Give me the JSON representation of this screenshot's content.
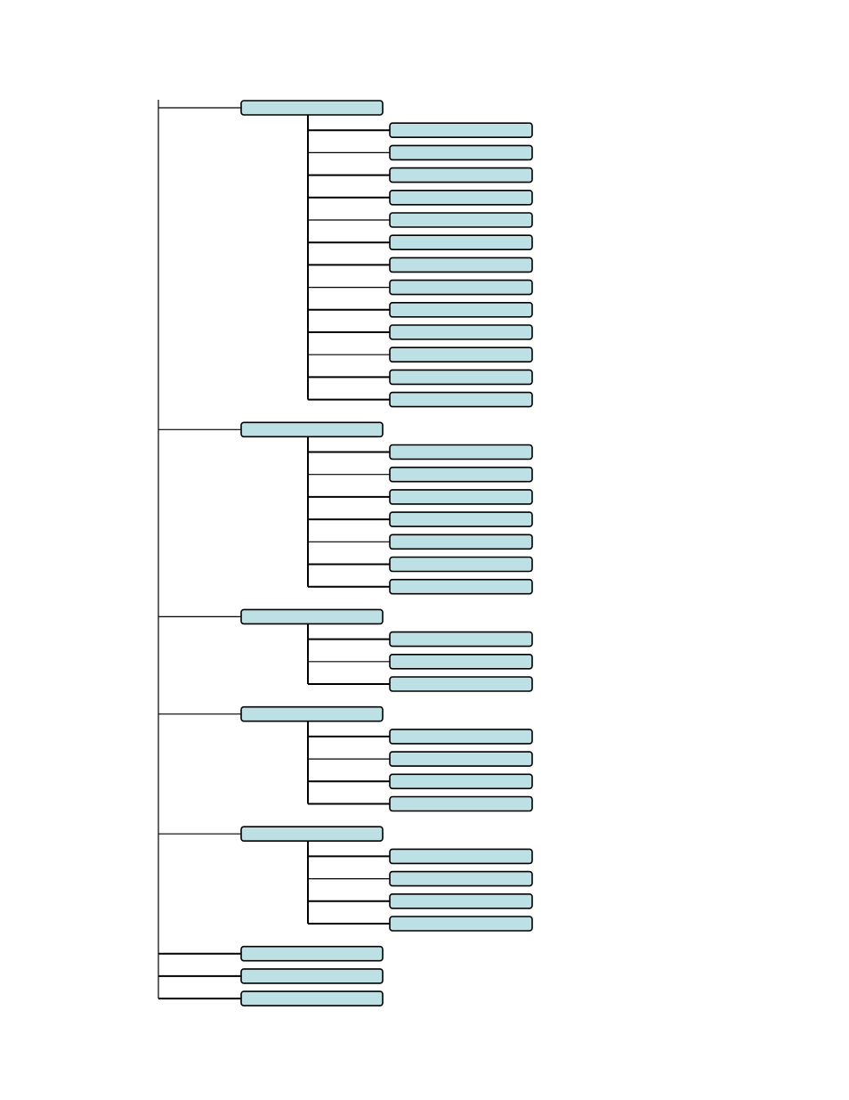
{
  "diagram": {
    "type": "tree",
    "style": {
      "box_fill": "#bde0e4",
      "box_stroke": "#000000",
      "line_color": "#000000",
      "background": "#ffffff"
    },
    "groups": [
      {
        "label": "",
        "children": [
          {
            "label": ""
          },
          {
            "label": ""
          },
          {
            "label": ""
          },
          {
            "label": ""
          },
          {
            "label": ""
          },
          {
            "label": ""
          },
          {
            "label": ""
          },
          {
            "label": ""
          },
          {
            "label": ""
          },
          {
            "label": ""
          },
          {
            "label": ""
          },
          {
            "label": ""
          },
          {
            "label": ""
          }
        ]
      },
      {
        "label": "",
        "children": [
          {
            "label": ""
          },
          {
            "label": ""
          },
          {
            "label": ""
          },
          {
            "label": ""
          },
          {
            "label": ""
          },
          {
            "label": ""
          },
          {
            "label": ""
          }
        ]
      },
      {
        "label": "",
        "children": [
          {
            "label": ""
          },
          {
            "label": ""
          },
          {
            "label": ""
          }
        ]
      },
      {
        "label": "",
        "children": [
          {
            "label": ""
          },
          {
            "label": ""
          },
          {
            "label": ""
          },
          {
            "label": ""
          }
        ]
      },
      {
        "label": "",
        "children": [
          {
            "label": ""
          },
          {
            "label": ""
          },
          {
            "label": ""
          },
          {
            "label": ""
          }
        ]
      },
      {
        "label": "",
        "children": []
      },
      {
        "label": "",
        "children": []
      },
      {
        "label": "",
        "children": []
      }
    ]
  }
}
